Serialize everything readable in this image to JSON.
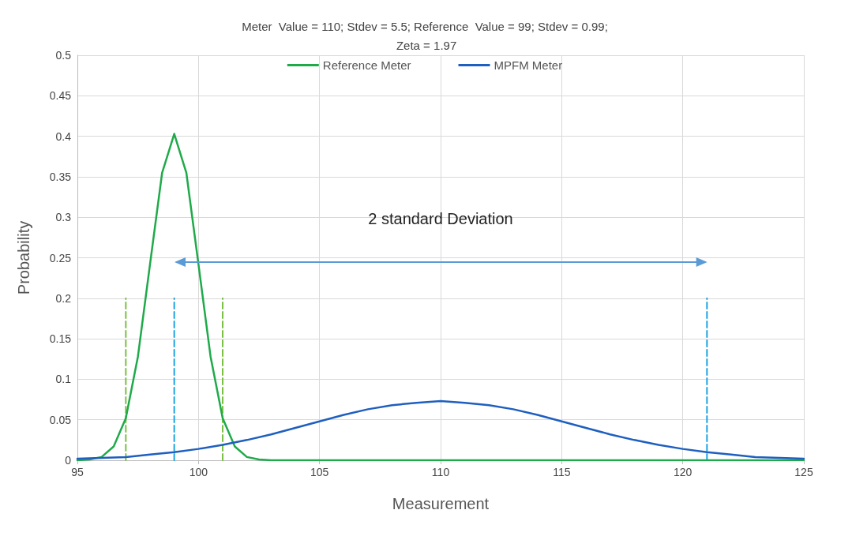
{
  "chart_data": {
    "type": "line",
    "title": "Meter  Value = 110; Stdev = 5.5; Reference  Value = 99; Stdev = 0.99; Zeta = 1.97",
    "xlabel": "Measurement",
    "ylabel": "Probability",
    "xlim": [
      95,
      125
    ],
    "xticks": [
      95,
      100,
      105,
      110,
      115,
      120,
      125
    ],
    "ylim": [
      0,
      0.5
    ],
    "yticks": [
      0,
      0.05,
      0.1,
      0.15,
      0.2,
      0.25,
      0.3,
      0.35,
      0.4,
      0.45,
      0.5
    ],
    "grid": true,
    "legend": "top",
    "marker": "none",
    "line_style": "solid",
    "annotations": [
      "2 standard Deviation"
    ],
    "series": [
      {
        "name": "Reference Meter",
        "color": "#1faa4a",
        "x": [
          95,
          95.5,
          96,
          96.5,
          97,
          97.5,
          98,
          98.5,
          99,
          99.5,
          100,
          100.5,
          101,
          101.5,
          102,
          102.5,
          103,
          125
        ],
        "values": [
          0,
          0.001,
          0.004,
          0.017,
          0.052,
          0.128,
          0.242,
          0.355,
          0.403,
          0.355,
          0.242,
          0.128,
          0.052,
          0.017,
          0.004,
          0.001,
          0,
          0
        ]
      },
      {
        "name": "MPFM Meter",
        "color": "#1f5fbf",
        "x": [
          95,
          96,
          97,
          98,
          99,
          100,
          101,
          102,
          103,
          104,
          105,
          106,
          107,
          108,
          109,
          110,
          111,
          112,
          113,
          114,
          115,
          116,
          117,
          118,
          119,
          120,
          121,
          122,
          123,
          124,
          125
        ],
        "values": [
          0.002,
          0.003,
          0.004,
          0.007,
          0.01,
          0.014,
          0.019,
          0.025,
          0.032,
          0.04,
          0.048,
          0.056,
          0.063,
          0.068,
          0.071,
          0.073,
          0.071,
          0.068,
          0.063,
          0.056,
          0.048,
          0.04,
          0.032,
          0.025,
          0.019,
          0.014,
          0.01,
          0.007,
          0.004,
          0.003,
          0.002
        ]
      },
      {
        "color": "#7ac143",
        "line_style": "dashed",
        "x": [
          97,
          97
        ],
        "values": [
          0,
          0.2
        ]
      },
      {
        "color": "#7ac143",
        "line_style": "dashed",
        "x": [
          101,
          101
        ],
        "values": [
          0,
          0.2
        ]
      },
      {
        "color": "#1fa3e0",
        "line_style": "dashed",
        "x": [
          99,
          99
        ],
        "values": [
          0,
          0.2
        ]
      },
      {
        "color": "#1fa3e0",
        "line_style": "dashed",
        "x": [
          121,
          121
        ],
        "values": [
          0,
          0.2
        ]
      }
    ]
  }
}
